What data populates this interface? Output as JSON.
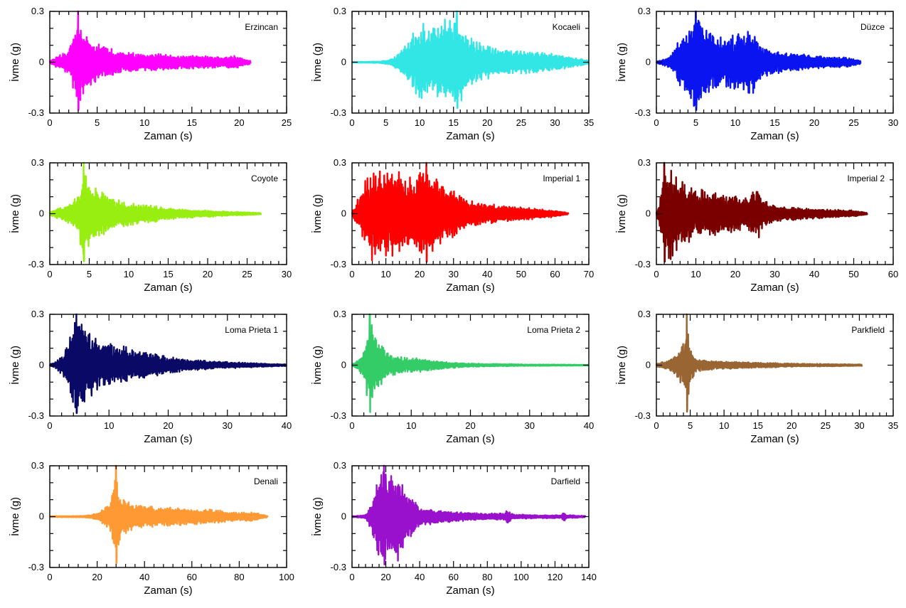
{
  "chart_data": [
    {
      "type": "line",
      "label": "Erzincan",
      "color": "#ff00ff",
      "xlabel": "Zaman (s)",
      "ylabel": "İvme (g)",
      "xlim": [
        0,
        25
      ],
      "ylim": [
        -0.3,
        0.3
      ],
      "xticks": [
        "0",
        "5",
        "10",
        "15",
        "20",
        "25"
      ],
      "yticks": [
        "-0.3",
        "0",
        "0.3"
      ],
      "duration": 21.2,
      "pga": 0.3,
      "envelope": [
        [
          0,
          0.01
        ],
        [
          1,
          0.04
        ],
        [
          2,
          0.07
        ],
        [
          2.6,
          0.19
        ],
        [
          3,
          0.3
        ],
        [
          3.5,
          0.2
        ],
        [
          4.5,
          0.13
        ],
        [
          6,
          0.09
        ],
        [
          8,
          0.06
        ],
        [
          10,
          0.05
        ],
        [
          12,
          0.05
        ],
        [
          14,
          0.04
        ],
        [
          16,
          0.04
        ],
        [
          18,
          0.03
        ],
        [
          19.5,
          0.04
        ],
        [
          21.2,
          0.01
        ]
      ]
    },
    {
      "type": "line",
      "label": "Kocaeli",
      "color": "#33e6e6",
      "xlabel": "Zaman (s)",
      "ylabel": "İvme (g)",
      "xlim": [
        0,
        35
      ],
      "ylim": [
        -0.3,
        0.3
      ],
      "xticks": [
        "0",
        "5",
        "10",
        "15",
        "20",
        "25",
        "30",
        "35"
      ],
      "yticks": [
        "-0.3",
        "0",
        "0.3"
      ],
      "duration": 35,
      "pga": 0.3,
      "envelope": [
        [
          0,
          0.003
        ],
        [
          4,
          0.005
        ],
        [
          6,
          0.02
        ],
        [
          7.5,
          0.08
        ],
        [
          9,
          0.17
        ],
        [
          10,
          0.24
        ],
        [
          12,
          0.22
        ],
        [
          14,
          0.26
        ],
        [
          15.5,
          0.29
        ],
        [
          16.5,
          0.2
        ],
        [
          18,
          0.13
        ],
        [
          20,
          0.1
        ],
        [
          25,
          0.07
        ],
        [
          30,
          0.05
        ],
        [
          35,
          0.01
        ]
      ]
    },
    {
      "type": "line",
      "label": "Düzce",
      "color": "#0a14f0",
      "xlabel": "Zaman (s)",
      "ylabel": "İvme (g)",
      "xlim": [
        0,
        30
      ],
      "ylim": [
        -0.3,
        0.3
      ],
      "xticks": [
        "0",
        "5",
        "10",
        "15",
        "20",
        "25",
        "30"
      ],
      "yticks": [
        "-0.3",
        "0",
        "0.3"
      ],
      "duration": 25.9,
      "pga": 0.3,
      "envelope": [
        [
          0,
          0.005
        ],
        [
          1,
          0.02
        ],
        [
          2,
          0.05
        ],
        [
          3,
          0.15
        ],
        [
          4,
          0.21
        ],
        [
          5,
          0.3
        ],
        [
          7,
          0.17
        ],
        [
          9,
          0.15
        ],
        [
          11,
          0.18
        ],
        [
          12,
          0.2
        ],
        [
          13.5,
          0.1
        ],
        [
          16,
          0.06
        ],
        [
          20,
          0.04
        ],
        [
          22,
          0.03
        ],
        [
          24,
          0.03
        ],
        [
          25.9,
          0.01
        ]
      ]
    },
    {
      "type": "line",
      "label": "Coyote",
      "color": "#99ee11",
      "xlabel": "Zaman (s)",
      "ylabel": "İvme (g)",
      "xlim": [
        0,
        30
      ],
      "ylim": [
        -0.3,
        0.3
      ],
      "xticks": [
        "0",
        "5",
        "10",
        "15",
        "20",
        "25",
        "30"
      ],
      "yticks": [
        "-0.3",
        "0",
        "0.3"
      ],
      "duration": 26.8,
      "pga": 0.3,
      "envelope": [
        [
          0,
          0.01
        ],
        [
          2,
          0.05
        ],
        [
          3.5,
          0.1
        ],
        [
          4.3,
          0.3
        ],
        [
          5,
          0.2
        ],
        [
          6,
          0.15
        ],
        [
          8,
          0.1
        ],
        [
          10,
          0.07
        ],
        [
          13,
          0.05
        ],
        [
          16,
          0.03
        ],
        [
          20,
          0.02
        ],
        [
          26.8,
          0.005
        ]
      ]
    },
    {
      "type": "line",
      "label": "Imperial 1",
      "color": "#ff0000",
      "xlabel": "Zaman (s)",
      "ylabel": "İvme (g)",
      "xlim": [
        0,
        70
      ],
      "ylim": [
        -0.3,
        0.3
      ],
      "xticks": [
        "0",
        "10",
        "20",
        "30",
        "40",
        "50",
        "60",
        "70"
      ],
      "yticks": [
        "-0.3",
        "0",
        "0.3"
      ],
      "duration": 64,
      "pga": 0.3,
      "envelope": [
        [
          0,
          0.01
        ],
        [
          2,
          0.1
        ],
        [
          4,
          0.2
        ],
        [
          6,
          0.28
        ],
        [
          8,
          0.25
        ],
        [
          12,
          0.28
        ],
        [
          16,
          0.22
        ],
        [
          20,
          0.26
        ],
        [
          22,
          0.3
        ],
        [
          26,
          0.2
        ],
        [
          30,
          0.14
        ],
        [
          35,
          0.08
        ],
        [
          40,
          0.06
        ],
        [
          50,
          0.04
        ],
        [
          60,
          0.02
        ],
        [
          64,
          0.005
        ]
      ]
    },
    {
      "type": "line",
      "label": "Imperial 2",
      "color": "#7a0000",
      "xlabel": "Zaman (s)",
      "ylabel": "İvme (g)",
      "xlim": [
        0,
        60
      ],
      "ylim": [
        -0.3,
        0.3
      ],
      "xticks": [
        "0",
        "10",
        "20",
        "30",
        "40",
        "50",
        "60"
      ],
      "yticks": [
        "-0.3",
        "0",
        "0.3"
      ],
      "duration": 53.5,
      "pga": 0.3,
      "envelope": [
        [
          0,
          0.01
        ],
        [
          1,
          0.1
        ],
        [
          2,
          0.3
        ],
        [
          4,
          0.27
        ],
        [
          6,
          0.2
        ],
        [
          10,
          0.15
        ],
        [
          14,
          0.14
        ],
        [
          18,
          0.12
        ],
        [
          22,
          0.1
        ],
        [
          26,
          0.15
        ],
        [
          27,
          0.08
        ],
        [
          30,
          0.05
        ],
        [
          40,
          0.03
        ],
        [
          50,
          0.02
        ],
        [
          53.5,
          0.005
        ]
      ]
    },
    {
      "type": "line",
      "label": "Loma Prieta 1",
      "color": "#0a0a66",
      "xlabel": "Zaman (s)",
      "ylabel": "İvme (g)",
      "xlim": [
        0,
        40
      ],
      "ylim": [
        -0.3,
        0.3
      ],
      "xticks": [
        "0",
        "10",
        "20",
        "30",
        "40"
      ],
      "yticks": [
        "-0.3",
        "0",
        "0.3"
      ],
      "duration": 40,
      "pga": 0.3,
      "envelope": [
        [
          0,
          0.005
        ],
        [
          1,
          0.02
        ],
        [
          2.5,
          0.08
        ],
        [
          3.5,
          0.2
        ],
        [
          4.5,
          0.3
        ],
        [
          6,
          0.22
        ],
        [
          8,
          0.16
        ],
        [
          10,
          0.14
        ],
        [
          12,
          0.12
        ],
        [
          15,
          0.09
        ],
        [
          20,
          0.05
        ],
        [
          25,
          0.03
        ],
        [
          30,
          0.02
        ],
        [
          40,
          0.005
        ]
      ]
    },
    {
      "type": "line",
      "label": "Loma Prieta 2",
      "color": "#33cc66",
      "xlabel": "Zaman (s)",
      "ylabel": "İvme (g)",
      "xlim": [
        0,
        40
      ],
      "ylim": [
        -0.3,
        0.3
      ],
      "xticks": [
        "0",
        "10",
        "20",
        "30",
        "40"
      ],
      "yticks": [
        "-0.3",
        "0",
        "0.3"
      ],
      "duration": 40,
      "pga": 0.3,
      "envelope": [
        [
          0,
          0.005
        ],
        [
          1,
          0.03
        ],
        [
          2,
          0.08
        ],
        [
          3,
          0.3
        ],
        [
          4,
          0.18
        ],
        [
          6,
          0.08
        ],
        [
          8,
          0.05
        ],
        [
          12,
          0.04
        ],
        [
          16,
          0.02
        ],
        [
          20,
          0.01
        ],
        [
          30,
          0.005
        ],
        [
          40,
          0.003
        ]
      ]
    },
    {
      "type": "line",
      "label": "Parkfield",
      "color": "#996633",
      "xlabel": "Zaman (s)",
      "ylabel": "İvme (g)",
      "xlim": [
        0,
        35
      ],
      "ylim": [
        -0.3,
        0.3
      ],
      "xticks": [
        "0",
        "5",
        "10",
        "15",
        "20",
        "25",
        "30",
        "35"
      ],
      "yticks": [
        "-0.3",
        "0",
        "0.3"
      ],
      "duration": 30.4,
      "pga": 0.3,
      "envelope": [
        [
          0,
          0.01
        ],
        [
          2,
          0.03
        ],
        [
          3.5,
          0.1
        ],
        [
          4.2,
          0.19
        ],
        [
          4.5,
          0.3
        ],
        [
          5,
          0.1
        ],
        [
          6,
          0.04
        ],
        [
          8,
          0.03
        ],
        [
          12,
          0.02
        ],
        [
          20,
          0.01
        ],
        [
          30.4,
          0.005
        ]
      ]
    },
    {
      "type": "line",
      "label": "Denali",
      "color": "#ff9933",
      "xlabel": "Zaman (s)",
      "ylabel": "İvme (g)",
      "xlim": [
        0,
        100
      ],
      "ylim": [
        -0.3,
        0.3
      ],
      "xticks": [
        "0",
        "20",
        "40",
        "60",
        "80",
        "100"
      ],
      "yticks": [
        "-0.3",
        "0",
        "0.3"
      ],
      "duration": 92,
      "pga": 0.3,
      "envelope": [
        [
          0,
          0.003
        ],
        [
          15,
          0.005
        ],
        [
          20,
          0.02
        ],
        [
          25,
          0.08
        ],
        [
          27,
          0.2
        ],
        [
          28,
          0.3
        ],
        [
          30,
          0.12
        ],
        [
          35,
          0.08
        ],
        [
          45,
          0.06
        ],
        [
          60,
          0.05
        ],
        [
          70,
          0.04
        ],
        [
          80,
          0.025
        ],
        [
          85,
          0.03
        ],
        [
          92,
          0.005
        ]
      ]
    },
    {
      "type": "line",
      "label": "Darfield",
      "color": "#9911cc",
      "xlabel": "Zaman (s)",
      "ylabel": "İvme (g)",
      "xlim": [
        0,
        140
      ],
      "ylim": [
        -0.3,
        0.3
      ],
      "xticks": [
        "0",
        "20",
        "40",
        "60",
        "80",
        "100",
        "120",
        "140"
      ],
      "yticks": [
        "-0.3",
        "0",
        "0.3"
      ],
      "duration": 138,
      "pga": 0.3,
      "envelope": [
        [
          0,
          0.003
        ],
        [
          8,
          0.01
        ],
        [
          12,
          0.1
        ],
        [
          16,
          0.26
        ],
        [
          19,
          0.3
        ],
        [
          24,
          0.25
        ],
        [
          28,
          0.28
        ],
        [
          32,
          0.15
        ],
        [
          40,
          0.06
        ],
        [
          60,
          0.03
        ],
        [
          80,
          0.02
        ],
        [
          90,
          0.02
        ],
        [
          92,
          0.04
        ],
        [
          95,
          0.015
        ],
        [
          110,
          0.01
        ],
        [
          124,
          0.01
        ],
        [
          125,
          0.04
        ],
        [
          127,
          0.01
        ],
        [
          138,
          0.005
        ]
      ]
    }
  ]
}
